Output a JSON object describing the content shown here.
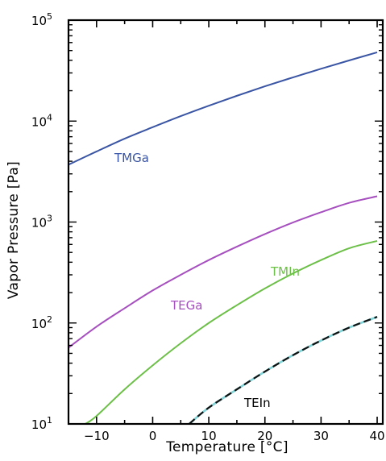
{
  "chart_data": {
    "type": "line",
    "title": "",
    "xlabel": "Temperature [°C]",
    "ylabel": "Vapor Pressure [Pa]",
    "xlim": [
      -15,
      41
    ],
    "ylim": [
      10,
      100000
    ],
    "yscale": "log",
    "x_ticks": [
      -10,
      0,
      10,
      20,
      30,
      40
    ],
    "y_ticks": [
      {
        "value": 10,
        "base": "10",
        "exp": "1"
      },
      {
        "value": 100,
        "base": "10",
        "exp": "2"
      },
      {
        "value": 1000,
        "base": "10",
        "exp": "3"
      },
      {
        "value": 10000,
        "base": "10",
        "exp": "4"
      },
      {
        "value": 100000,
        "base": "10",
        "exp": "5"
      }
    ],
    "grid": false,
    "series": [
      {
        "name": "TMGa",
        "color": "#3a55a4",
        "dash": "solid",
        "x": [
          -15,
          -10,
          -5,
          0,
          5,
          10,
          15,
          20,
          25,
          30,
          35,
          40
        ],
        "y": [
          3700,
          5000,
          6700,
          8700,
          11200,
          14200,
          17800,
          22100,
          27100,
          33000,
          39900,
          48000
        ]
      },
      {
        "name": "TEGa",
        "color": "#a64fbf",
        "dash": "solid",
        "x": [
          -15,
          -10,
          -5,
          0,
          5,
          10,
          15,
          20,
          25,
          30,
          35,
          40
        ],
        "y": [
          57,
          92,
          140,
          210,
          300,
          420,
          570,
          760,
          990,
          1250,
          1550,
          1800
        ]
      },
      {
        "name": "TMIn",
        "color": "#6cbf47",
        "dash": "solid",
        "x": [
          -12,
          -10,
          -5,
          0,
          5,
          10,
          15,
          20,
          25,
          30,
          35,
          40
        ],
        "y": [
          10,
          12,
          22,
          38,
          63,
          100,
          150,
          220,
          310,
          420,
          550,
          650
        ]
      },
      {
        "name": "TEIn",
        "color": "#111111",
        "dash": "dashed",
        "x": [
          6.5,
          10,
          15,
          20,
          25,
          30,
          35,
          40
        ],
        "y": [
          10,
          14.5,
          22,
          33,
          48,
          67,
          90,
          115
        ]
      }
    ]
  }
}
